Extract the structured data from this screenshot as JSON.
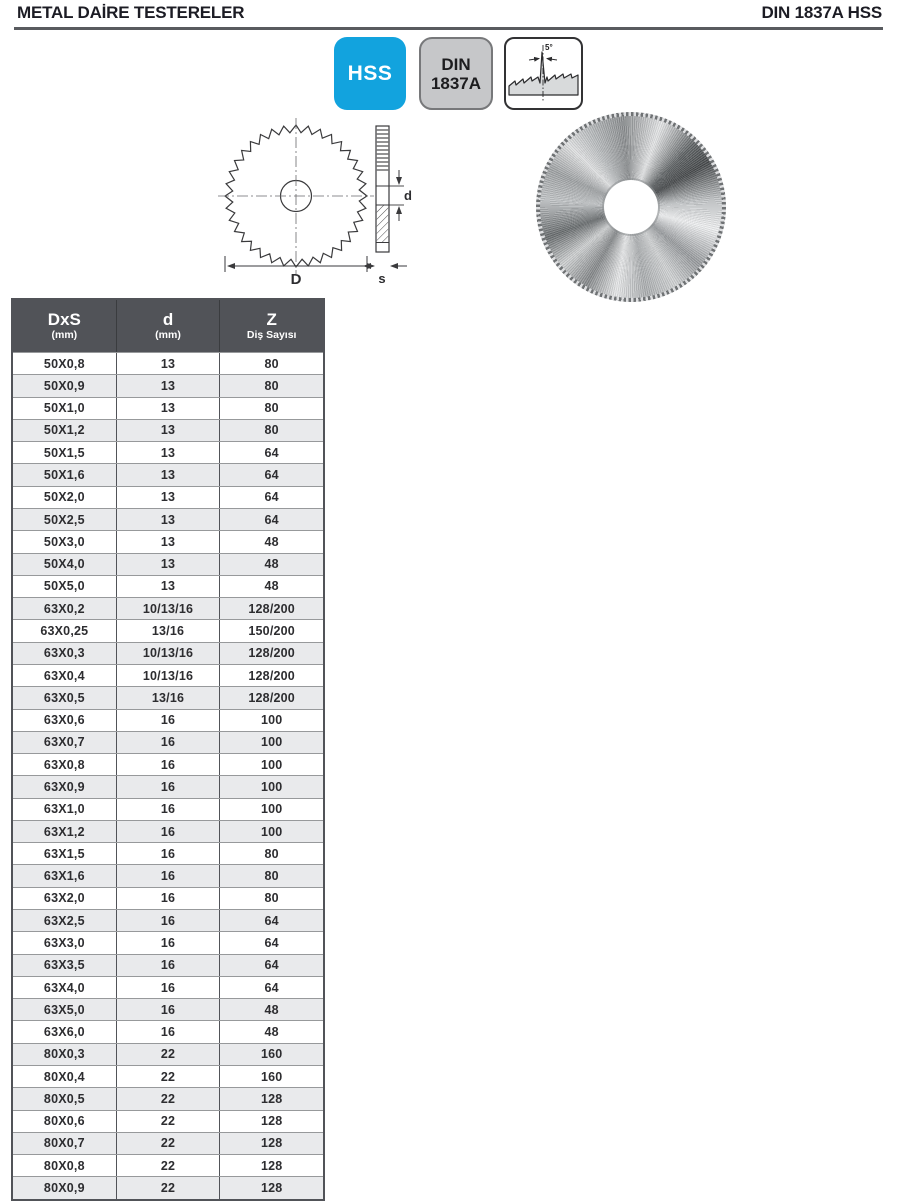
{
  "page": {
    "title": "METAL DAİRE TESTERELER",
    "standard": "DIN 1837A HSS"
  },
  "badges": {
    "hss_label": "HSS",
    "din_line1": "DIN",
    "din_line2": "1837A",
    "tooth_angle_label": "5°"
  },
  "drawing": {
    "diameter_label": "D",
    "bore_label": "d",
    "thickness_label": "s"
  },
  "colors": {
    "accent_blue": "#12a3de",
    "table_header_bg": "#515358",
    "alt_row_bg": "#e9eaec",
    "badge_gray_bg": "#c6c7c9",
    "rule_gray": "#595b5f"
  },
  "table": {
    "headers": [
      {
        "main": "DxS",
        "sub": "(mm)"
      },
      {
        "main": "d",
        "sub": "(mm)"
      },
      {
        "main": "Z",
        "sub": "Diş Sayısı"
      }
    ],
    "rows": [
      [
        "50X0,8",
        "13",
        "80"
      ],
      [
        "50X0,9",
        "13",
        "80"
      ],
      [
        "50X1,0",
        "13",
        "80"
      ],
      [
        "50X1,2",
        "13",
        "80"
      ],
      [
        "50X1,5",
        "13",
        "64"
      ],
      [
        "50X1,6",
        "13",
        "64"
      ],
      [
        "50X2,0",
        "13",
        "64"
      ],
      [
        "50X2,5",
        "13",
        "64"
      ],
      [
        "50X3,0",
        "13",
        "48"
      ],
      [
        "50X4,0",
        "13",
        "48"
      ],
      [
        "50X5,0",
        "13",
        "48"
      ],
      [
        "63X0,2",
        "10/13/16",
        "128/200"
      ],
      [
        "63X0,25",
        "13/16",
        "150/200"
      ],
      [
        "63X0,3",
        "10/13/16",
        "128/200"
      ],
      [
        "63X0,4",
        "10/13/16",
        "128/200"
      ],
      [
        "63X0,5",
        "13/16",
        "128/200"
      ],
      [
        "63X0,6",
        "16",
        "100"
      ],
      [
        "63X0,7",
        "16",
        "100"
      ],
      [
        "63X0,8",
        "16",
        "100"
      ],
      [
        "63X0,9",
        "16",
        "100"
      ],
      [
        "63X1,0",
        "16",
        "100"
      ],
      [
        "63X1,2",
        "16",
        "100"
      ],
      [
        "63X1,5",
        "16",
        "80"
      ],
      [
        "63X1,6",
        "16",
        "80"
      ],
      [
        "63X2,0",
        "16",
        "80"
      ],
      [
        "63X2,5",
        "16",
        "64"
      ],
      [
        "63X3,0",
        "16",
        "64"
      ],
      [
        "63X3,5",
        "16",
        "64"
      ],
      [
        "63X4,0",
        "16",
        "64"
      ],
      [
        "63X5,0",
        "16",
        "48"
      ],
      [
        "63X6,0",
        "16",
        "48"
      ],
      [
        "80X0,3",
        "22",
        "160"
      ],
      [
        "80X0,4",
        "22",
        "160"
      ],
      [
        "80X0,5",
        "22",
        "128"
      ],
      [
        "80X0,6",
        "22",
        "128"
      ],
      [
        "80X0,7",
        "22",
        "128"
      ],
      [
        "80X0,8",
        "22",
        "128"
      ],
      [
        "80X0,9",
        "22",
        "128"
      ]
    ]
  }
}
